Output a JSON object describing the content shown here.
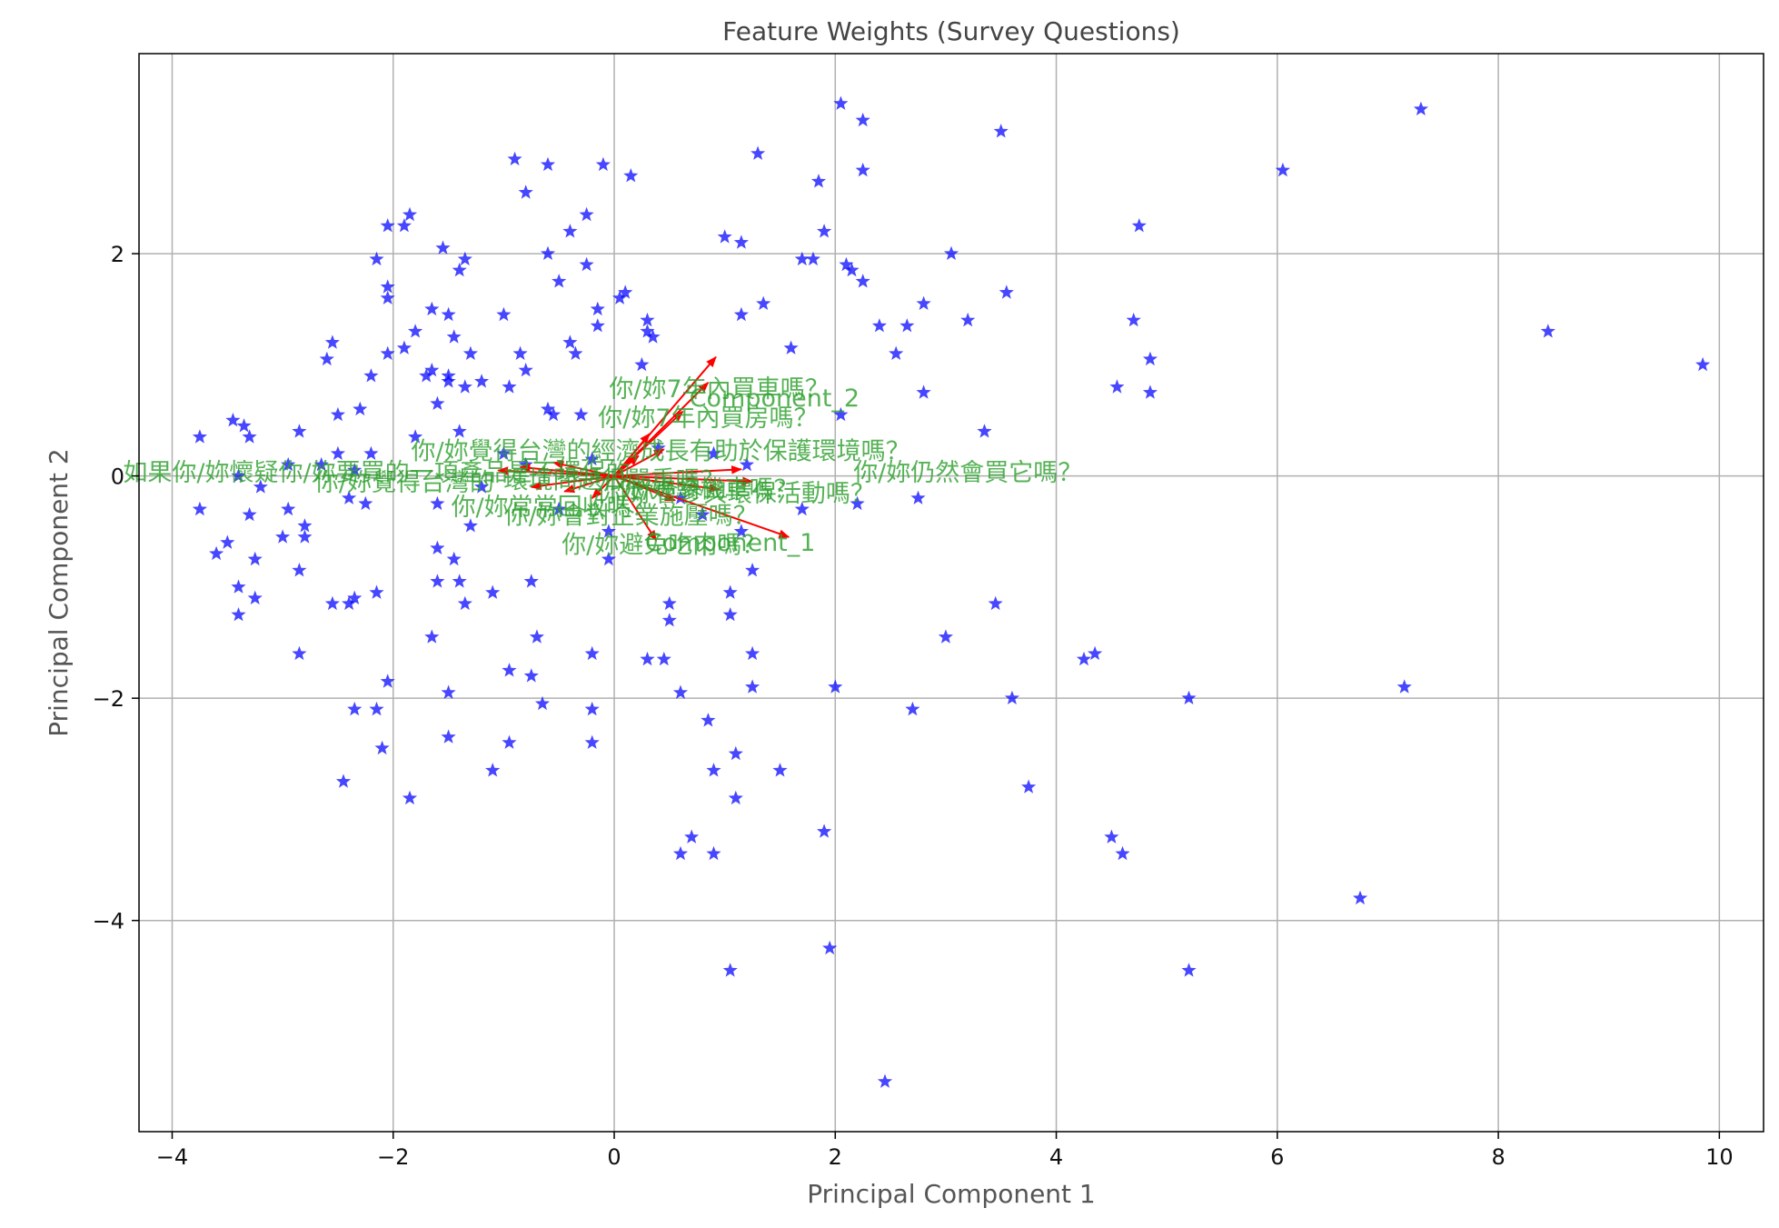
{
  "colors": {
    "points": "#0000ff",
    "arrows": "#ff0000",
    "labels": "#2ca02c",
    "grid": "#b0b0b0"
  },
  "chart_data": {
    "type": "scatter",
    "title": "Feature Weights (Survey Questions)",
    "xlabel": "Principal Component 1",
    "ylabel": "Principal Component 2",
    "xlim": [
      -4.3,
      10.4
    ],
    "ylim": [
      -5.9,
      3.8
    ],
    "xticks": [
      -4,
      -2,
      0,
      2,
      4,
      6,
      8,
      10
    ],
    "yticks": [
      -4,
      -2,
      0,
      2
    ],
    "xtick_labels": [
      "−4",
      "−2",
      "0",
      "2",
      "4",
      "6",
      "8",
      "10"
    ],
    "ytick_labels": [
      "−4",
      "−2",
      "0",
      "2"
    ],
    "grid": true,
    "marker": "star",
    "points": [
      [
        2.05,
        3.35
      ],
      [
        2.25,
        3.2
      ],
      [
        7.3,
        3.3
      ],
      [
        3.5,
        3.1
      ],
      [
        1.3,
        2.9
      ],
      [
        -0.9,
        2.85
      ],
      [
        -0.6,
        2.8
      ],
      [
        -0.1,
        2.8
      ],
      [
        0.15,
        2.7
      ],
      [
        1.85,
        2.65
      ],
      [
        2.25,
        2.75
      ],
      [
        6.05,
        2.75
      ],
      [
        -0.8,
        2.55
      ],
      [
        -1.85,
        2.35
      ],
      [
        -2.05,
        2.25
      ],
      [
        -1.9,
        2.25
      ],
      [
        -0.25,
        2.35
      ],
      [
        -0.4,
        2.2
      ],
      [
        -1.55,
        2.05
      ],
      [
        -1.35,
        1.95
      ],
      [
        -0.6,
        2.0
      ],
      [
        1.0,
        2.15
      ],
      [
        1.15,
        2.1
      ],
      [
        1.9,
        2.2
      ],
      [
        4.75,
        2.25
      ],
      [
        -2.15,
        1.95
      ],
      [
        -1.4,
        1.85
      ],
      [
        -2.05,
        1.7
      ],
      [
        -0.5,
        1.75
      ],
      [
        -0.25,
        1.9
      ],
      [
        1.7,
        1.95
      ],
      [
        1.8,
        1.95
      ],
      [
        2.1,
        1.9
      ],
      [
        2.15,
        1.85
      ],
      [
        3.05,
        2.0
      ],
      [
        2.25,
        1.75
      ],
      [
        3.55,
        1.65
      ],
      [
        -2.05,
        1.6
      ],
      [
        -1.65,
        1.5
      ],
      [
        -1.5,
        1.45
      ],
      [
        -1.0,
        1.45
      ],
      [
        -0.15,
        1.5
      ],
      [
        0.05,
        1.6
      ],
      [
        0.1,
        1.65
      ],
      [
        0.3,
        1.4
      ],
      [
        1.35,
        1.55
      ],
      [
        1.15,
        1.45
      ],
      [
        2.8,
        1.55
      ],
      [
        -1.45,
        1.25
      ],
      [
        -1.8,
        1.3
      ],
      [
        -2.55,
        1.2
      ],
      [
        -1.9,
        1.15
      ],
      [
        -2.05,
        1.1
      ],
      [
        -1.3,
        1.1
      ],
      [
        -0.85,
        1.1
      ],
      [
        -0.4,
        1.2
      ],
      [
        -0.35,
        1.1
      ],
      [
        -0.15,
        1.35
      ],
      [
        0.3,
        1.3
      ],
      [
        0.35,
        1.25
      ],
      [
        1.6,
        1.15
      ],
      [
        2.4,
        1.35
      ],
      [
        2.65,
        1.35
      ],
      [
        3.2,
        1.4
      ],
      [
        4.7,
        1.4
      ],
      [
        8.45,
        1.3
      ],
      [
        -2.6,
        1.05
      ],
      [
        -1.65,
        0.95
      ],
      [
        -2.2,
        0.9
      ],
      [
        -0.8,
        0.95
      ],
      [
        -1.5,
        0.9
      ],
      [
        -1.5,
        0.85
      ],
      [
        -1.7,
        0.9
      ],
      [
        -1.2,
        0.85
      ],
      [
        -0.95,
        0.8
      ],
      [
        -1.35,
        0.8
      ],
      [
        0.25,
        1.0
      ],
      [
        2.55,
        1.1
      ],
      [
        4.85,
        1.05
      ],
      [
        9.85,
        1.0
      ],
      [
        -0.6,
        0.6
      ],
      [
        -0.3,
        0.55
      ],
      [
        -1.6,
        0.65
      ],
      [
        -2.5,
        0.55
      ],
      [
        -2.3,
        0.6
      ],
      [
        -3.45,
        0.5
      ],
      [
        -3.35,
        0.45
      ],
      [
        -3.75,
        0.35
      ],
      [
        -3.3,
        0.35
      ],
      [
        -2.85,
        0.4
      ],
      [
        -1.8,
        0.35
      ],
      [
        -1.4,
        0.4
      ],
      [
        -0.55,
        0.55
      ],
      [
        2.8,
        0.75
      ],
      [
        4.55,
        0.8
      ],
      [
        4.85,
        0.75
      ],
      [
        3.35,
        0.4
      ],
      [
        2.05,
        0.55
      ],
      [
        -2.2,
        0.2
      ],
      [
        -2.5,
        0.2
      ],
      [
        -2.95,
        0.1
      ],
      [
        -2.65,
        0.1
      ],
      [
        -2.35,
        0.05
      ],
      [
        -3.4,
        0.0
      ],
      [
        -3.2,
        -0.1
      ],
      [
        -3.3,
        -0.35
      ],
      [
        -2.95,
        -0.3
      ],
      [
        -3.75,
        -0.3
      ],
      [
        -2.25,
        -0.25
      ],
      [
        -2.4,
        -0.2
      ],
      [
        -1.6,
        -0.25
      ],
      [
        -0.05,
        -0.5
      ],
      [
        1.15,
        -0.5
      ],
      [
        -1.6,
        -0.65
      ],
      [
        -2.8,
        -0.45
      ],
      [
        -2.8,
        -0.55
      ],
      [
        -3.0,
        -0.55
      ],
      [
        -3.5,
        -0.6
      ],
      [
        -3.6,
        -0.7
      ],
      [
        -3.25,
        -0.75
      ],
      [
        -1.45,
        -0.75
      ],
      [
        -2.85,
        -0.85
      ],
      [
        -0.05,
        -0.75
      ],
      [
        1.25,
        -0.85
      ],
      [
        2.2,
        -0.25
      ],
      [
        2.75,
        -0.2
      ],
      [
        -1.6,
        -0.95
      ],
      [
        -1.4,
        -0.95
      ],
      [
        -2.15,
        -1.05
      ],
      [
        -2.35,
        -1.1
      ],
      [
        -3.4,
        -1.0
      ],
      [
        -3.25,
        -1.1
      ],
      [
        -2.4,
        -1.15
      ],
      [
        -3.4,
        -1.25
      ],
      [
        -2.55,
        -1.15
      ],
      [
        -1.35,
        -1.15
      ],
      [
        -1.1,
        -1.05
      ],
      [
        -0.75,
        -0.95
      ],
      [
        0.5,
        -1.15
      ],
      [
        0.5,
        -1.3
      ],
      [
        1.05,
        -1.05
      ],
      [
        1.05,
        -1.25
      ],
      [
        3.45,
        -1.15
      ],
      [
        -1.65,
        -1.45
      ],
      [
        -0.7,
        -1.45
      ],
      [
        -0.2,
        -1.6
      ],
      [
        1.25,
        -1.6
      ],
      [
        3.0,
        -1.45
      ],
      [
        0.3,
        -1.65
      ],
      [
        0.45,
        -1.65
      ],
      [
        -2.85,
        -1.6
      ],
      [
        -2.05,
        -1.85
      ],
      [
        -0.95,
        -1.75
      ],
      [
        -0.75,
        -1.8
      ],
      [
        4.25,
        -1.65
      ],
      [
        4.35,
        -1.6
      ],
      [
        1.25,
        -1.9
      ],
      [
        2.0,
        -1.9
      ],
      [
        -1.5,
        -1.95
      ],
      [
        0.6,
        -1.95
      ],
      [
        3.6,
        -2.0
      ],
      [
        5.2,
        -2.0
      ],
      [
        7.15,
        -1.9
      ],
      [
        -2.35,
        -2.1
      ],
      [
        -2.15,
        -2.1
      ],
      [
        -0.65,
        -2.05
      ],
      [
        -0.2,
        -2.1
      ],
      [
        2.7,
        -2.1
      ],
      [
        0.85,
        -2.2
      ],
      [
        -2.1,
        -2.45
      ],
      [
        -0.95,
        -2.4
      ],
      [
        -0.2,
        -2.4
      ],
      [
        -1.5,
        -2.35
      ],
      [
        1.1,
        -2.5
      ],
      [
        0.9,
        -2.65
      ],
      [
        1.5,
        -2.65
      ],
      [
        -1.1,
        -2.65
      ],
      [
        -2.45,
        -2.75
      ],
      [
        3.75,
        -2.8
      ],
      [
        -1.85,
        -2.9
      ],
      [
        1.1,
        -2.9
      ],
      [
        0.7,
        -3.25
      ],
      [
        0.6,
        -3.4
      ],
      [
        0.9,
        -3.4
      ],
      [
        1.9,
        -3.2
      ],
      [
        4.5,
        -3.25
      ],
      [
        4.6,
        -3.4
      ],
      [
        6.75,
        -3.8
      ],
      [
        1.95,
        -4.25
      ],
      [
        1.05,
        -4.45
      ],
      [
        5.2,
        -4.45
      ],
      [
        2.45,
        -5.45
      ],
      [
        -1.0,
        0.2
      ],
      [
        -0.8,
        0.1
      ],
      [
        -0.5,
        -0.3
      ],
      [
        0.4,
        0.25
      ],
      [
        0.8,
        -0.35
      ],
      [
        1.2,
        0.1
      ],
      [
        -1.2,
        -0.1
      ],
      [
        -0.2,
        0.15
      ],
      [
        0.6,
        -0.2
      ],
      [
        -1.3,
        -0.45
      ],
      [
        0.9,
        0.2
      ],
      [
        1.7,
        -0.3
      ]
    ],
    "arrows": [
      [
        0.92,
        1.07
      ],
      [
        0.85,
        0.84
      ],
      [
        0.62,
        0.58
      ],
      [
        0.32,
        0.38
      ],
      [
        0.45,
        0.24
      ],
      [
        0.22,
        0.18
      ],
      [
        -0.55,
        0.12
      ],
      [
        -0.85,
        0.08
      ],
      [
        -1.05,
        0.05
      ],
      [
        1.15,
        0.06
      ],
      [
        1.25,
        -0.05
      ],
      [
        0.95,
        -0.12
      ],
      [
        -0.45,
        -0.14
      ],
      [
        -0.75,
        -0.1
      ],
      [
        1.58,
        -0.55
      ],
      [
        0.38,
        -0.58
      ],
      [
        0.55,
        -0.22
      ],
      [
        -0.2,
        -0.2
      ]
    ],
    "feature_labels": [
      {
        "x": 0.95,
        "y": 0.78,
        "text": "你/妳7年內買車嗎？"
      },
      {
        "x": 1.45,
        "y": 0.7,
        "text": "Component_2"
      },
      {
        "x": 0.85,
        "y": 0.52,
        "text": "你/妳7年內買房嗎？"
      },
      {
        "x": 0.42,
        "y": 0.22,
        "text": "你/妳覺得台灣的經濟成長有助於保護環境嗎？"
      },
      {
        "x": -2.15,
        "y": 0.03,
        "text": "如果你/妳懷疑你/妳要買的一項產品是不環保的"
      },
      {
        "x": 3.2,
        "y": 0.03,
        "text": "你/妳仍然會買它嗎？"
      },
      {
        "x": -1.9,
        "y": -0.06,
        "text": "你/妳覺得台灣的"
      },
      {
        "x": 0.0,
        "y": -0.04,
        "text": "環境問題很嚴重嗎？"
      },
      {
        "x": 1.1,
        "y": -0.16,
        "text": "你/妳會參與環保活動嗎？"
      },
      {
        "x": -0.55,
        "y": -0.28,
        "text": "你/妳常常回收嗎？"
      },
      {
        "x": 0.15,
        "y": -0.36,
        "text": "你/妳會對企業施壓嗎？"
      },
      {
        "x": 1.05,
        "y": -0.6,
        "text": "Component_1"
      },
      {
        "x": 0.45,
        "y": -0.62,
        "text": "你/妳避免吃肉嗎？"
      },
      {
        "x": 0.85,
        "y": -0.12,
        "text": "你/妳騎機車嗎？"
      }
    ]
  }
}
